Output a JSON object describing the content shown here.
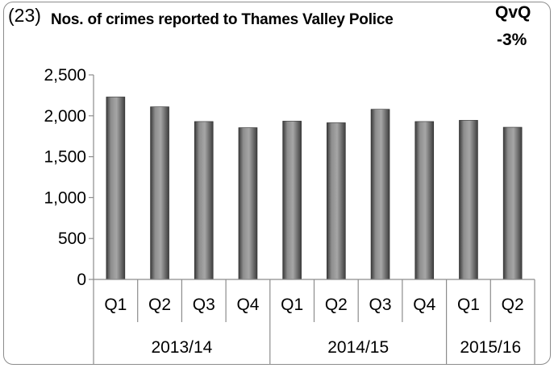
{
  "header": {
    "chart_number": "(23)",
    "title": "Nos. of crimes reported to Thames Valley Police",
    "change_label": "QvQ",
    "change_value": "-3%"
  },
  "chart_data": {
    "type": "bar",
    "title": "Nos. of crimes reported to Thames Valley Police",
    "categories": [
      "Q1",
      "Q2",
      "Q3",
      "Q4",
      "Q1",
      "Q2",
      "Q3",
      "Q4",
      "Q1",
      "Q2"
    ],
    "groups": [
      {
        "label": "2013/14",
        "count": 4
      },
      {
        "label": "2014/15",
        "count": 4
      },
      {
        "label": "2015/16",
        "count": 2
      }
    ],
    "values": [
      2230,
      2110,
      1930,
      1855,
      1935,
      1915,
      2080,
      1930,
      1945,
      1860
    ],
    "ylim": [
      0,
      2500
    ],
    "yticks": [
      0,
      500,
      1000,
      1500,
      2000,
      2500
    ],
    "ytick_labels": [
      "0",
      "500",
      "1,000",
      "1,500",
      "2,000",
      "2,500"
    ],
    "grid": false,
    "bar_color": "#6e6e6e"
  }
}
